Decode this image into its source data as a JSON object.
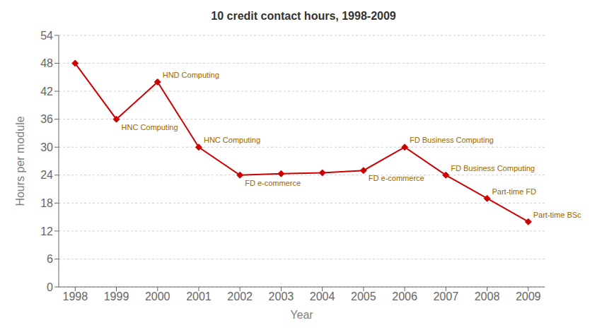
{
  "chart_data": {
    "type": "line",
    "title": "10 credit contact hours, 1998-2009",
    "xlabel": "Year",
    "ylabel": "Hours per module",
    "x": [
      1998,
      1999,
      2000,
      2001,
      2002,
      2003,
      2004,
      2005,
      2006,
      2007,
      2008,
      2009
    ],
    "values": [
      48,
      36,
      44,
      30,
      24,
      24.3,
      24.5,
      25,
      30,
      24,
      19,
      14
    ],
    "color": "#cc0000",
    "marker": "diamond",
    "xlim": [
      1997.6,
      2009.4
    ],
    "xticks": [
      1998,
      1999,
      2000,
      2001,
      2002,
      2003,
      2004,
      2005,
      2006,
      2007,
      2008,
      2009
    ],
    "ylim": [
      0,
      54
    ],
    "yticks": [
      0,
      6,
      12,
      18,
      24,
      30,
      36,
      42,
      48,
      54
    ],
    "grid": true,
    "annotations": [
      {
        "x": 1999,
        "y": 36,
        "text": "HNC Computing",
        "color": "#996600"
      },
      {
        "x": 2000,
        "y": 44,
        "text": "HND Computing",
        "color": "#996600"
      },
      {
        "x": 2001,
        "y": 30,
        "text": "HNC Computing",
        "color": "#996600"
      },
      {
        "x": 2002,
        "y": 24,
        "text": "FD e-commerce",
        "color": "#996600"
      },
      {
        "x": 2005,
        "y": 25,
        "text": "FD e-commerce",
        "color": "#996600"
      },
      {
        "x": 2006,
        "y": 30,
        "text": "FD Business Computing",
        "color": "#996600"
      },
      {
        "x": 2007,
        "y": 24,
        "text": "FD Business Computing",
        "color": "#996600"
      },
      {
        "x": 2008,
        "y": 19,
        "text": "Part-time FD",
        "color": "#996600"
      },
      {
        "x": 2009,
        "y": 14,
        "text": "Part-time BSc",
        "color": "#996600"
      }
    ]
  }
}
